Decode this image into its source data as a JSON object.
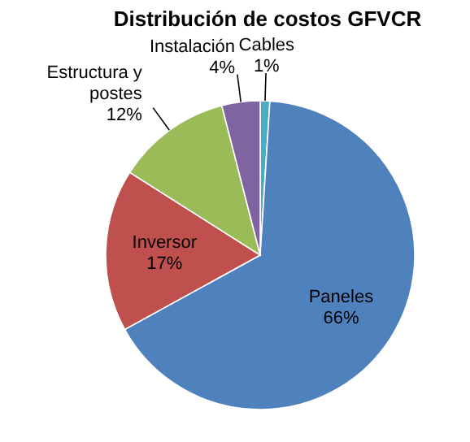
{
  "chart_data": {
    "type": "pie",
    "title": "Distribución de costos GFVCR",
    "categories": [
      "Cables",
      "Paneles",
      "Inversor",
      "Estructura y postes",
      "Instalación"
    ],
    "values": [
      1,
      66,
      17,
      12,
      4
    ],
    "value_labels": [
      "1%",
      "66%",
      "17%",
      "12%",
      "4%"
    ],
    "colors": [
      "#4bacc6",
      "#4f81bd",
      "#c0504d",
      "#9bbb59",
      "#8064a2"
    ]
  }
}
